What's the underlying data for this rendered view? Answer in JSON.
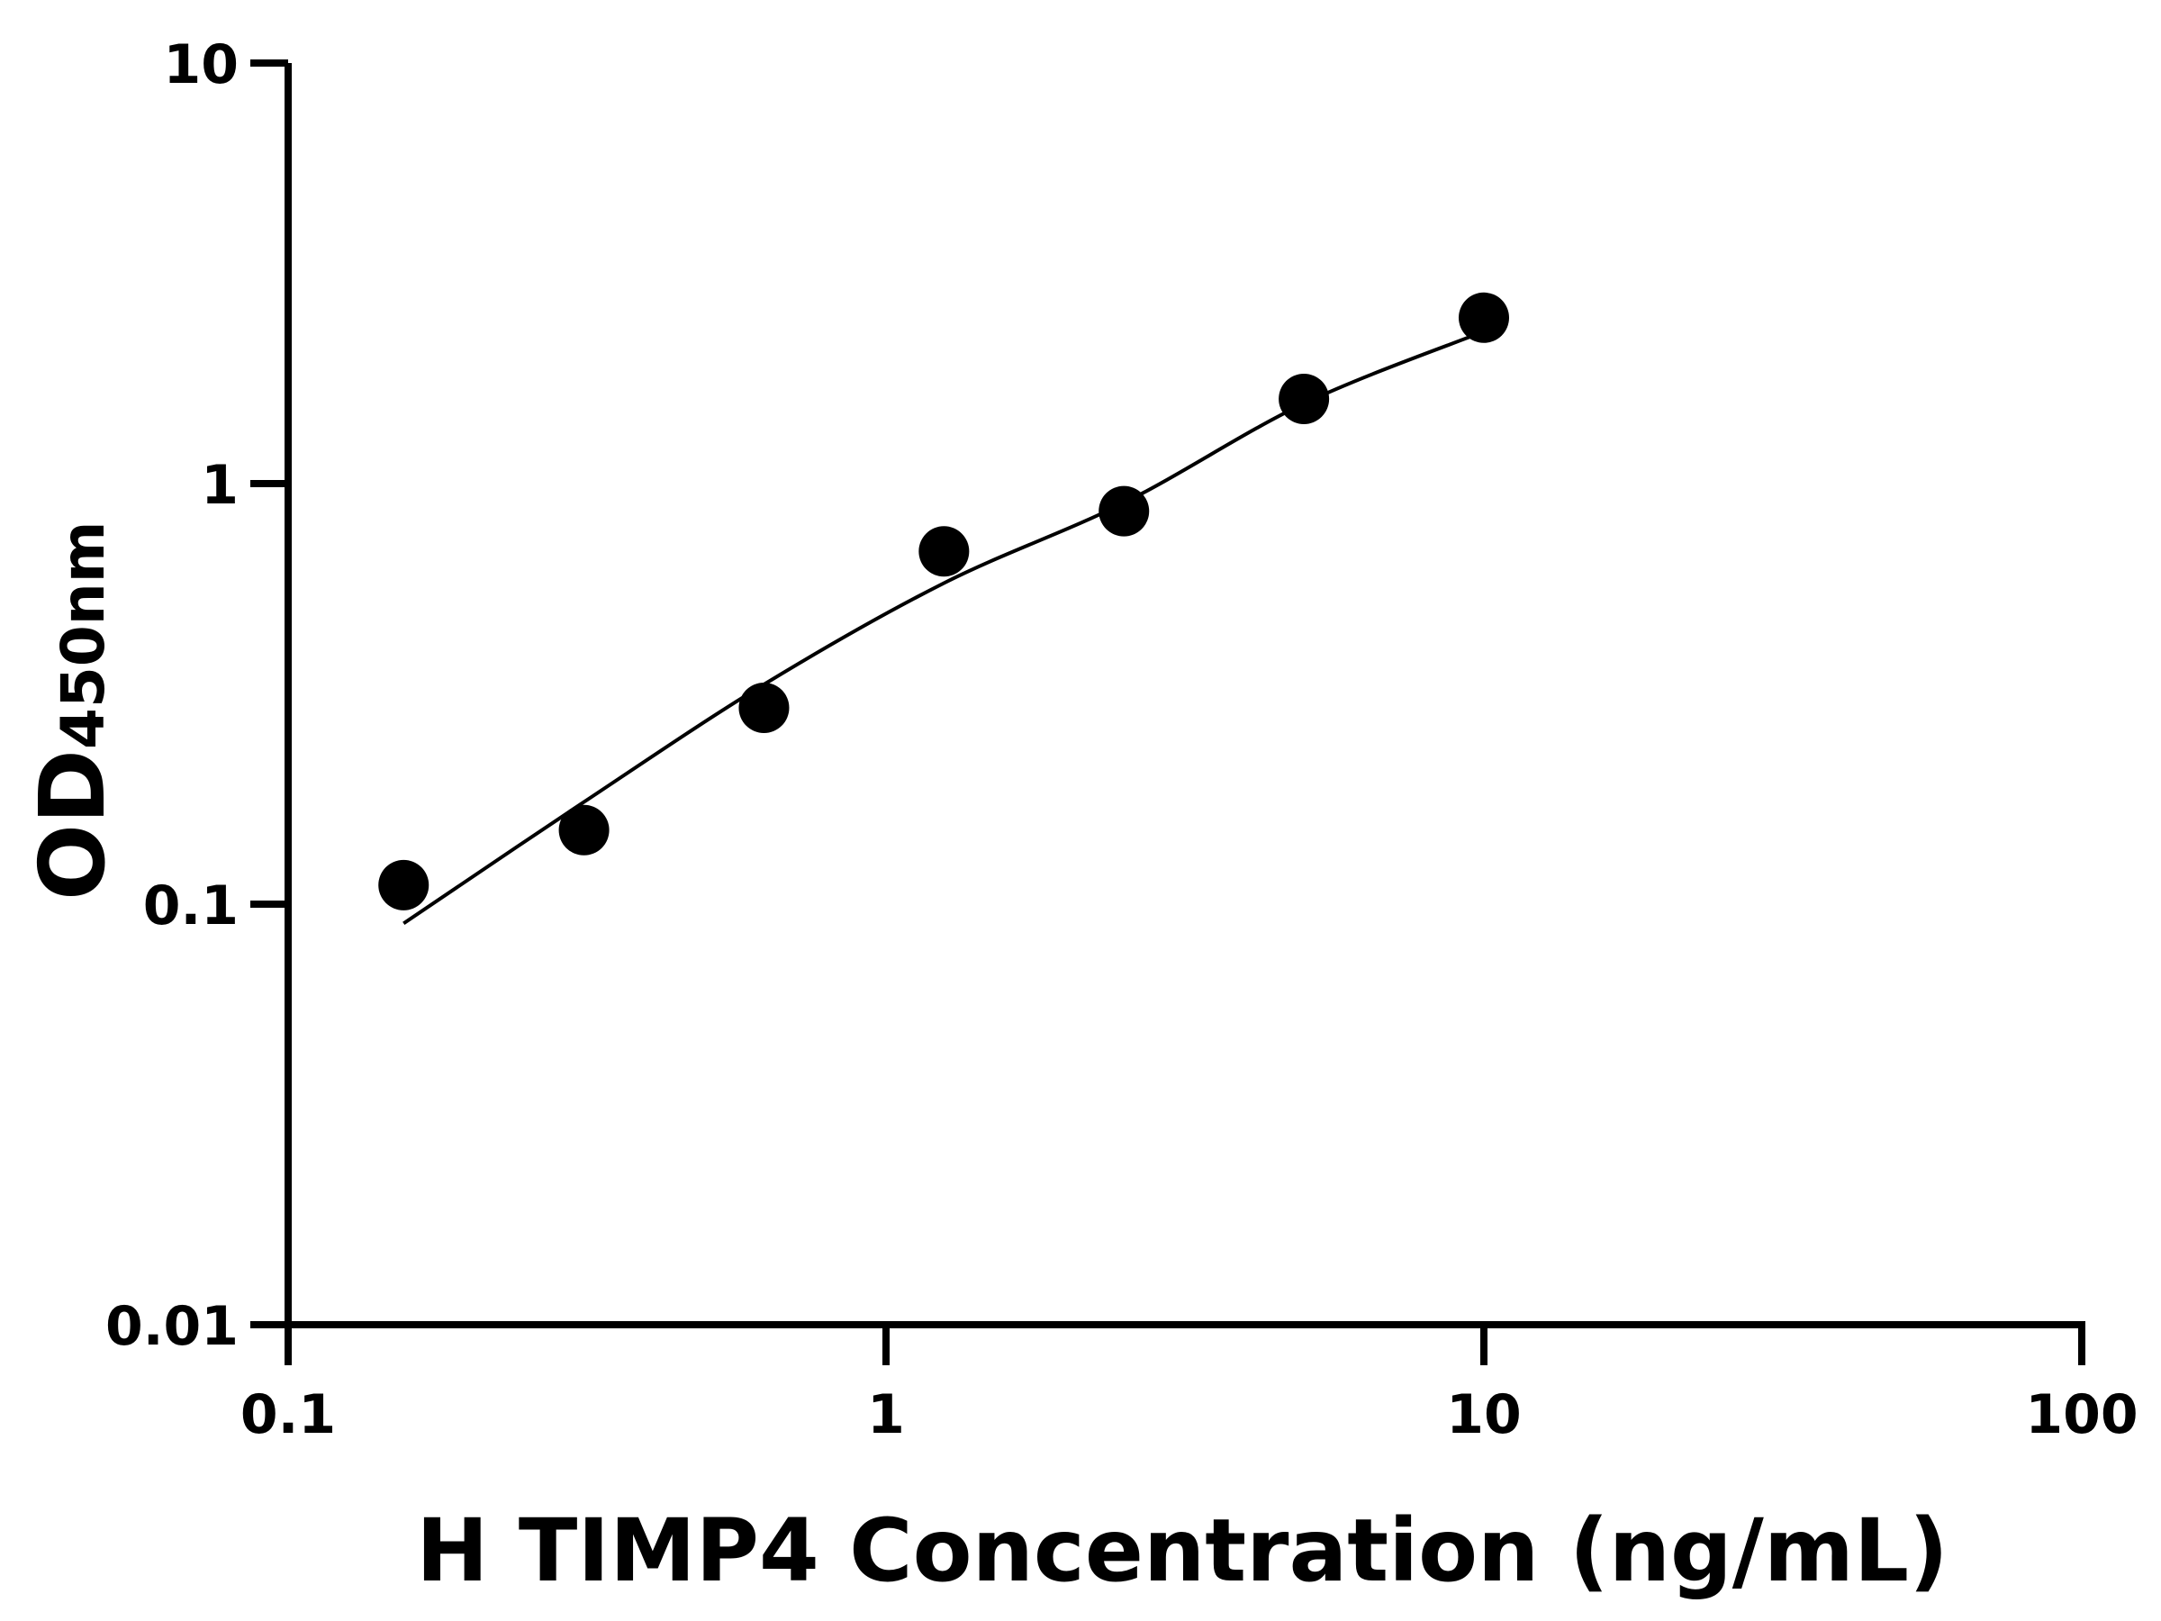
{
  "chart_data": {
    "type": "scatter",
    "title": "",
    "xlabel": "H TIMP4 Concentration (ng/mL)",
    "ylabel_main": "OD",
    "ylabel_sub": "450nm",
    "x_scale": "log",
    "y_scale": "log",
    "xlim": [
      0.1,
      100
    ],
    "ylim": [
      0.01,
      10
    ],
    "x_ticks": [
      0.1,
      1,
      10,
      100
    ],
    "x_tick_labels": [
      "0.1",
      "1",
      "10",
      "100"
    ],
    "y_ticks": [
      0.01,
      0.1,
      1,
      10
    ],
    "y_tick_labels": [
      "0.01",
      "0.1",
      "1",
      "10"
    ],
    "grid": false,
    "points": {
      "x": [
        0.156,
        0.3125,
        0.625,
        1.25,
        2.5,
        5,
        10
      ],
      "y": [
        0.111,
        0.15,
        0.293,
        0.69,
        0.86,
        1.59,
        2.48
      ]
    },
    "fit_curve": {
      "x": [
        0.156,
        0.3125,
        0.625,
        1.25,
        2.5,
        5,
        10
      ],
      "y": [
        0.09,
        0.175,
        0.333,
        0.58,
        0.9,
        1.55,
        2.3
      ]
    },
    "color": "#000000"
  }
}
